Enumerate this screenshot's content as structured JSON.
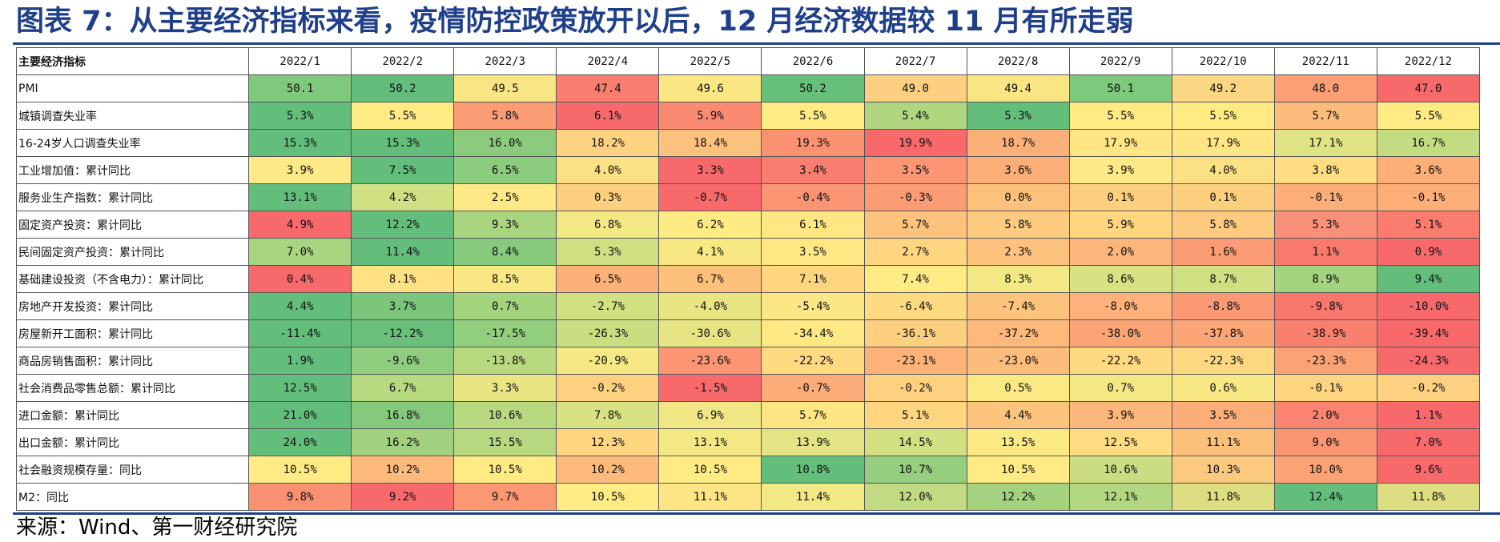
{
  "title": "图表 7：从主要经济指标来看，疫情防控政策放开以后，12 月经济数据较 11 月有所走弱",
  "source": "来源：Wind、第一财经研究院",
  "chart_data": {
    "type": "table",
    "corner_label": "主要经济指标",
    "columns": [
      "2022/1",
      "2022/2",
      "2022/3",
      "2022/4",
      "2022/5",
      "2022/6",
      "2022/7",
      "2022/8",
      "2022/9",
      "2022/10",
      "2022/11",
      "2022/12"
    ],
    "rows": [
      {
        "label": "PMI",
        "cells": [
          "50.1",
          "50.2",
          "49.5",
          "47.4",
          "49.6",
          "50.2",
          "49.0",
          "49.4",
          "50.1",
          "49.2",
          "48.0",
          "47.0"
        ],
        "colors": [
          "#7ec97c",
          "#63be7b",
          "#f8e583",
          "#f97e6f",
          "#fbe884",
          "#66bf7b",
          "#fdd081",
          "#f9e583",
          "#7dc97d",
          "#fcd783",
          "#fb9f75",
          "#f8696b"
        ]
      },
      {
        "label": "城镇调查失业率",
        "cells": [
          "5.3%",
          "5.5%",
          "5.8%",
          "6.1%",
          "5.9%",
          "5.5%",
          "5.4%",
          "5.3%",
          "5.5%",
          "5.5%",
          "5.7%",
          "5.5%"
        ],
        "colors": [
          "#63be7b",
          "#ffeb84",
          "#fb9c74",
          "#f8696b",
          "#fa8a72",
          "#ffeb84",
          "#b0d680",
          "#63be7b",
          "#ffeb84",
          "#ffeb84",
          "#fdbc7b",
          "#ffeb84"
        ]
      },
      {
        "label": "16-24岁人口调查失业率",
        "cells": [
          "15.3%",
          "15.3%",
          "16.0%",
          "18.2%",
          "18.4%",
          "19.3%",
          "19.9%",
          "18.7%",
          "17.9%",
          "17.9%",
          "17.1%",
          "16.7%"
        ],
        "colors": [
          "#63be7b",
          "#63be7b",
          "#8ccb7e",
          "#fed280",
          "#fcc17c",
          "#fa9271",
          "#f8696b",
          "#fbb079",
          "#ffe583",
          "#ffe583",
          "#e0e383",
          "#c4dc81"
        ]
      },
      {
        "label": "工业增加值：累计同比",
        "cells": [
          "3.9%",
          "7.5%",
          "6.5%",
          "4.0%",
          "3.3%",
          "3.4%",
          "3.5%",
          "3.6%",
          "3.9%",
          "4.0%",
          "3.8%",
          "3.6%"
        ],
        "colors": [
          "#fde985",
          "#63be7b",
          "#8ccc7e",
          "#fbe183",
          "#f8696b",
          "#f97e6f",
          "#fb9574",
          "#fcae78",
          "#fde985",
          "#fbe183",
          "#fddc82",
          "#fcae78"
        ]
      },
      {
        "label": "服务业生产指数：累计同比",
        "cells": [
          "13.1%",
          "4.2%",
          "2.5%",
          "0.3%",
          "-0.7%",
          "-0.4%",
          "-0.3%",
          "0.0%",
          "0.1%",
          "0.1%",
          "-0.1%",
          "-0.1%"
        ],
        "colors": [
          "#63be7b",
          "#cfe082",
          "#fde985",
          "#fdd07f",
          "#f8696b",
          "#fa9473",
          "#fb9c75",
          "#fcc17b",
          "#fdd07f",
          "#fdd07f",
          "#fcae78",
          "#fcae78"
        ]
      },
      {
        "label": "固定资产投资：累计同比",
        "cells": [
          "4.9%",
          "12.2%",
          "9.3%",
          "6.8%",
          "6.2%",
          "6.1%",
          "5.7%",
          "5.8%",
          "5.9%",
          "5.8%",
          "5.3%",
          "5.1%"
        ],
        "colors": [
          "#f8696b",
          "#63be7b",
          "#a9d580",
          "#f2e884",
          "#ffeb84",
          "#ffe784",
          "#fdc27d",
          "#fdcb7f",
          "#fed680",
          "#fdcb7f",
          "#f9907a",
          "#f97c6e"
        ]
      },
      {
        "label": "民间固定资产投资：累计同比",
        "cells": [
          "7.0%",
          "11.4%",
          "8.4%",
          "5.3%",
          "4.1%",
          "3.5%",
          "2.7%",
          "2.3%",
          "2.0%",
          "1.6%",
          "1.1%",
          "0.9%"
        ],
        "colors": [
          "#a9d580",
          "#63be7b",
          "#87ca7e",
          "#cfe082",
          "#f8e883",
          "#ffe884",
          "#fed580",
          "#fdc27d",
          "#fcb57a",
          "#fb9c74",
          "#f9796d",
          "#f8696b"
        ]
      },
      {
        "label": "基础建设投资（不含电力）：累计同比",
        "cells": [
          "0.4%",
          "8.1%",
          "8.5%",
          "6.5%",
          "6.7%",
          "7.1%",
          "7.4%",
          "8.3%",
          "8.6%",
          "8.7%",
          "8.9%",
          "9.4%"
        ],
        "colors": [
          "#f8696b",
          "#fee283",
          "#f9e783",
          "#fcb178",
          "#fdc07b",
          "#fed680",
          "#ffeb84",
          "#f4e884",
          "#d9e282",
          "#cfe082",
          "#a3d47f",
          "#63be7b"
        ]
      },
      {
        "label": "房地产开发投资：累计同比",
        "cells": [
          "4.4%",
          "3.7%",
          "0.7%",
          "-2.7%",
          "-4.0%",
          "-5.4%",
          "-6.4%",
          "-7.4%",
          "-8.0%",
          "-8.8%",
          "-9.8%",
          "-10.0%"
        ],
        "colors": [
          "#63be7b",
          "#7bc67c",
          "#a5d47f",
          "#d2e082",
          "#e9e583",
          "#fbe884",
          "#feda81",
          "#fdc47d",
          "#fcb27a",
          "#fb9974",
          "#f9776d",
          "#f8696b"
        ]
      },
      {
        "label": "房屋新开工面积：累计同比",
        "cells": [
          "-11.4%",
          "-12.2%",
          "-17.5%",
          "-26.3%",
          "-30.6%",
          "-34.4%",
          "-36.1%",
          "-37.2%",
          "-38.0%",
          "-37.8%",
          "-38.9%",
          "-39.4%"
        ],
        "colors": [
          "#63be7b",
          "#6ac07b",
          "#93cd7e",
          "#c9de81",
          "#e7e583",
          "#fee883",
          "#fdd07f",
          "#fdb97b",
          "#fba576",
          "#fba676",
          "#f9806f",
          "#f8696b"
        ]
      },
      {
        "label": "商品房销售面积：累计同比",
        "cells": [
          "1.9%",
          "-9.6%",
          "-13.8%",
          "-20.9%",
          "-23.6%",
          "-22.2%",
          "-23.1%",
          "-23.0%",
          "-22.2%",
          "-22.3%",
          "-23.3%",
          "-24.3%"
        ],
        "colors": [
          "#63be7b",
          "#90cc7e",
          "#b9d980",
          "#f5e884",
          "#fb9574",
          "#fedb81",
          "#fcb279",
          "#fcbc7b",
          "#fedb81",
          "#fed881",
          "#fba376",
          "#f8696b"
        ]
      },
      {
        "label": "社会消费品零售总额：累计同比",
        "cells": [
          "12.5%",
          "6.7%",
          "3.3%",
          "-0.2%",
          "-1.5%",
          "-0.7%",
          "-0.2%",
          "0.5%",
          "0.7%",
          "0.6%",
          "-0.1%",
          "-0.2%"
        ],
        "colors": [
          "#63be7b",
          "#b8d980",
          "#e8e583",
          "#fdd17f",
          "#f8696b",
          "#fbac78",
          "#fdd17f",
          "#fbe984",
          "#f3e884",
          "#f8e984",
          "#fdd580",
          "#fdd17f"
        ]
      },
      {
        "label": "进口金额：累计同比",
        "cells": [
          "21.0%",
          "16.8%",
          "10.6%",
          "7.8%",
          "6.9%",
          "5.7%",
          "5.1%",
          "4.4%",
          "3.9%",
          "3.5%",
          "2.0%",
          "1.1%"
        ],
        "colors": [
          "#63be7b",
          "#85c97d",
          "#b8d980",
          "#d9e282",
          "#f0e684",
          "#fee683",
          "#fed680",
          "#fdc47d",
          "#fdb77a",
          "#fcad78",
          "#fa8470",
          "#f8696b"
        ]
      },
      {
        "label": "出口金额：累计同比",
        "cells": [
          "24.0%",
          "16.2%",
          "15.5%",
          "12.3%",
          "13.1%",
          "13.9%",
          "14.5%",
          "13.5%",
          "12.5%",
          "11.1%",
          "9.0%",
          "7.0%"
        ],
        "colors": [
          "#63be7b",
          "#a2d27f",
          "#b7d880",
          "#fed680",
          "#f3e884",
          "#e3e483",
          "#d2e082",
          "#fbe984",
          "#fedc81",
          "#fdc07b",
          "#fa9573",
          "#f8696b"
        ]
      },
      {
        "label": "社会融资规模存量：同比",
        "cells": [
          "10.5%",
          "10.2%",
          "10.5%",
          "10.2%",
          "10.5%",
          "10.8%",
          "10.7%",
          "10.5%",
          "10.6%",
          "10.3%",
          "10.0%",
          "9.6%"
        ],
        "colors": [
          "#ffeb84",
          "#fdba7b",
          "#ffeb84",
          "#fdba7b",
          "#ffeb84",
          "#63be7b",
          "#96ce7f",
          "#ffeb84",
          "#cbdd81",
          "#fcca7f",
          "#fca376",
          "#f8696b"
        ]
      },
      {
        "label": "M2：同比",
        "cells": [
          "9.8%",
          "9.2%",
          "9.7%",
          "10.5%",
          "11.1%",
          "11.4%",
          "12.0%",
          "12.2%",
          "12.1%",
          "11.8%",
          "12.4%",
          "11.8%"
        ],
        "colors": [
          "#fa9072",
          "#f8696b",
          "#fb9873",
          "#ffeb84",
          "#fbe584",
          "#f2e884",
          "#c2da81",
          "#a4d27f",
          "#b3d680",
          "#ddde82",
          "#63be7b",
          "#ddde82"
        ]
      }
    ]
  }
}
